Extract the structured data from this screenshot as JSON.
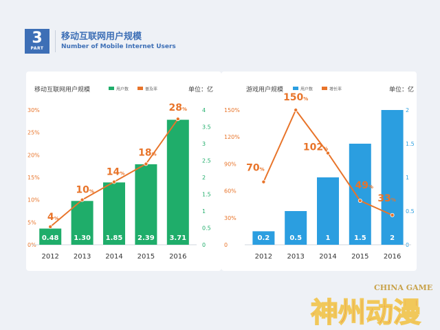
{
  "header": {
    "part_number": "3",
    "part_label": "PART",
    "title": "移动互联网用户规模",
    "subtitle": "Number of Mobile Internet Users"
  },
  "chart_data": [
    {
      "type": "bar",
      "title": "移动互联网用户规模",
      "unit_label": "单位：亿",
      "legend": {
        "bar": "用户数",
        "line": "普及率"
      },
      "categories": [
        "2012",
        "2013",
        "2014",
        "2015",
        "2016"
      ],
      "series": [
        {
          "name": "用户数",
          "type": "bar",
          "values": [
            0.48,
            1.3,
            1.85,
            2.39,
            3.71
          ],
          "labels": [
            "0.48",
            "1.30",
            "1.85",
            "2.39",
            "3.71"
          ],
          "color": "#1fad6a",
          "axis": "right"
        },
        {
          "name": "普及率",
          "type": "line",
          "values": [
            4,
            10,
            14,
            18,
            28
          ],
          "labels": [
            "4",
            "10",
            "14",
            "18",
            "28"
          ],
          "color": "#e8742a",
          "axis": "left"
        }
      ],
      "left_axis": {
        "ticks": [
          "0%",
          "5%",
          "10%",
          "15%",
          "20%",
          "25%",
          "30%"
        ],
        "range": [
          0,
          30
        ],
        "color": "#e8742a"
      },
      "right_axis": {
        "ticks": [
          "0",
          "0.5",
          "1",
          "1.5",
          "2",
          "2.5",
          "3",
          "3.5",
          "4"
        ],
        "range": [
          0,
          4
        ],
        "color": "#1fad6a"
      }
    },
    {
      "type": "bar",
      "title": "游戏用户规模",
      "unit_label": "单位：亿",
      "legend": {
        "bar": "用户数",
        "line": "增长率"
      },
      "categories": [
        "2012",
        "2013",
        "2014",
        "2015",
        "2016"
      ],
      "series": [
        {
          "name": "用户数",
          "type": "bar",
          "values": [
            0.2,
            0.5,
            1,
            1.5,
            2
          ],
          "labels": [
            "0.2",
            "0.5",
            "1",
            "1.5",
            "2"
          ],
          "color": "#2b9ee0",
          "axis": "right"
        },
        {
          "name": "增长率",
          "type": "line",
          "values": [
            70,
            150,
            102,
            49,
            33
          ],
          "labels": [
            "70",
            "150",
            "102",
            "49",
            "33"
          ],
          "color": "#e8742a",
          "axis": "left"
        }
      ],
      "left_axis": {
        "ticks": [
          "0",
          "30%",
          "60%",
          "90%",
          "120%",
          "150%"
        ],
        "range": [
          0,
          150
        ],
        "color": "#e8742a"
      },
      "right_axis": {
        "ticks": [
          "0",
          "0.5",
          "1",
          "1.5",
          "2"
        ],
        "range": [
          0,
          2
        ],
        "color": "#2b9ee0"
      }
    }
  ],
  "watermark": {
    "top_text": "CHINA GAME",
    "main_text": "神州动漫"
  }
}
